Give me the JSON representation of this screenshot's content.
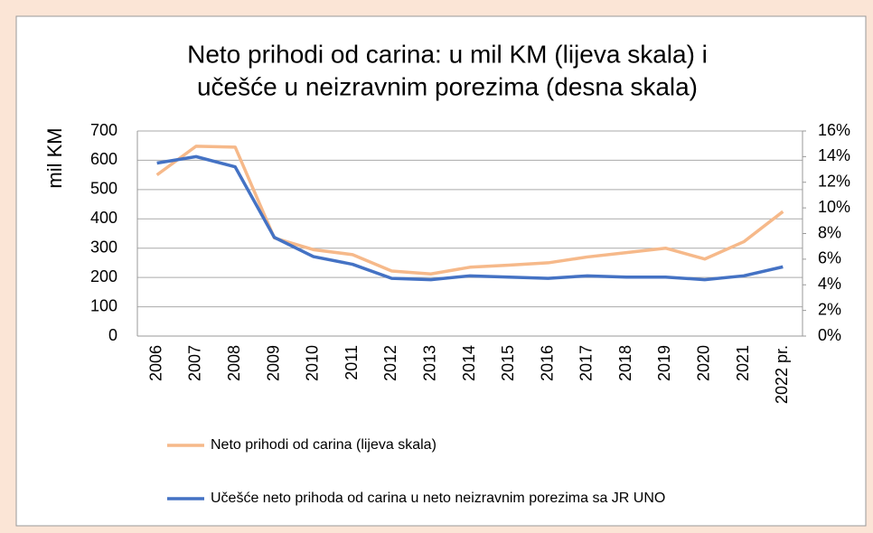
{
  "chart_data": {
    "type": "line",
    "title": [
      "Neto prihodi od carina: u mil KM (lijeva skala) i",
      "učešće u neizravnim porezima (desna skala)"
    ],
    "y_label": "mil KM",
    "categories": [
      "2006",
      "2007",
      "2008",
      "2009",
      "2010",
      "2011",
      "2012",
      "2013",
      "2014",
      "2015",
      "2016",
      "2017",
      "2018",
      "2019",
      "2020",
      "2021",
      "2022 pr."
    ],
    "series": [
      {
        "name": "Neto prihodi od carina (lijeva skala)",
        "color": "#f6b98a",
        "values": [
          550,
          648,
          645,
          335,
          295,
          278,
          222,
          212,
          235,
          242,
          250,
          270,
          285,
          300,
          263,
          322,
          425
        ]
      },
      {
        "name": "Učešće neto prihoda od carina u neto neizravnim porezima sa JR UNO",
        "color": "#4472c4",
        "axis": "y2",
        "values": [
          13.5,
          14.0,
          13.2,
          7.7,
          6.2,
          5.6,
          4.5,
          4.4,
          4.7,
          4.6,
          4.5,
          4.7,
          4.6,
          4.6,
          4.4,
          4.7,
          5.4
        ]
      }
    ],
    "ylim": [
      0,
      700
    ],
    "yticks": [
      0,
      100,
      200,
      300,
      400,
      500,
      600,
      700
    ],
    "y2lim": [
      0,
      16
    ],
    "y2ticks": [
      {
        "value": 0,
        "label": "0%"
      },
      {
        "value": 2,
        "label": "2%"
      },
      {
        "value": 4,
        "label": "4%"
      },
      {
        "value": 6,
        "label": "6%"
      },
      {
        "value": 8,
        "label": "8%"
      },
      {
        "value": 10,
        "label": "10%"
      },
      {
        "value": 12,
        "label": "12%"
      },
      {
        "value": 14,
        "label": "14%"
      },
      {
        "value": 16,
        "label": "16%"
      }
    ],
    "grid": true,
    "legend": "bottom"
  }
}
